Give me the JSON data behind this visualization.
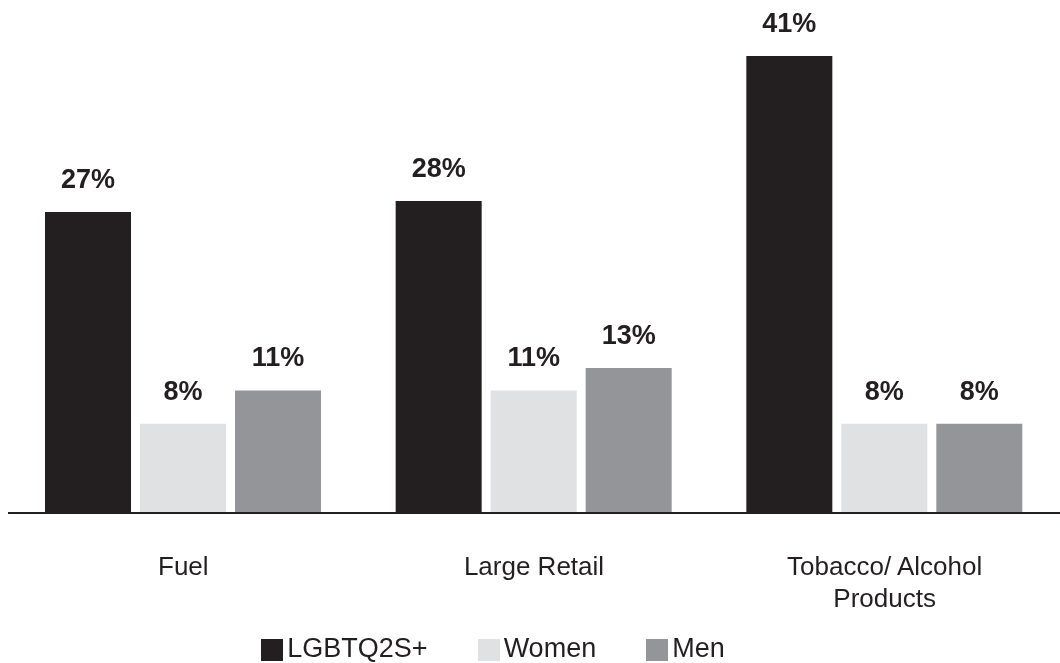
{
  "chart_data": {
    "type": "bar",
    "categories": [
      "Fuel",
      "Large Retail",
      "Tobacco/ Alcohol Products"
    ],
    "series": [
      {
        "name": "LGBTQ2S+",
        "color": "#231f20",
        "values": [
          27,
          28,
          41
        ],
        "value_labels": [
          "27%",
          "28%",
          "41%"
        ]
      },
      {
        "name": "Women",
        "color": "#e0e1e2",
        "values": [
          8,
          11,
          8
        ],
        "value_labels": [
          "8%",
          "11%",
          "8%"
        ]
      },
      {
        "name": "Men",
        "color": "#939598",
        "values": [
          11,
          13,
          8
        ],
        "value_labels": [
          "11%",
          "13%",
          "8%"
        ]
      }
    ],
    "tick_labels": "x",
    "legend": "bottom"
  }
}
